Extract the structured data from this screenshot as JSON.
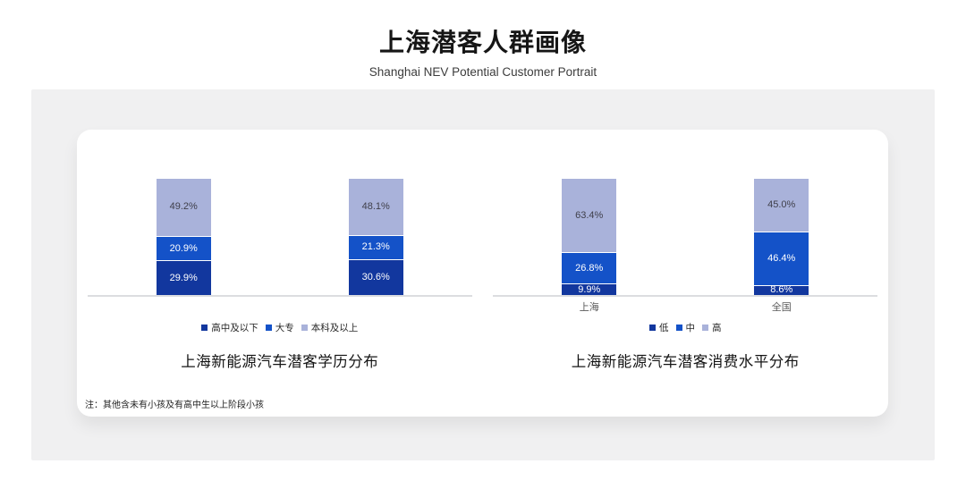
{
  "page": {
    "title": "上海潜客人群画像",
    "subtitle": "Shanghai NEV Potential Customer Portrait",
    "footnote": "注：其他含未有小孩及有高中生以上阶段小孩"
  },
  "colors": {
    "panel_bg": "#f0f0f1",
    "card_bg": "#ffffff",
    "axis_line": "#dcdde0",
    "segment_dark_blue": "#12379e",
    "segment_mid_blue": "#1452c8",
    "segment_light_lavender": "#a9b2da",
    "label_on_blue": "#ffffff",
    "label_on_lavender": "#3f3f4a",
    "category_label": "#595959"
  },
  "chart_data": [
    {
      "type": "bar",
      "stacked": true,
      "title": "上海新能源汽车潜客学历分布",
      "categories": [
        "",
        ""
      ],
      "series": [
        {
          "name": "高中及以下",
          "color": "#12379e",
          "label_color": "#ffffff",
          "values": [
            29.9,
            30.6
          ]
        },
        {
          "name": "大专",
          "color": "#1452c8",
          "label_color": "#ffffff",
          "values": [
            20.9,
            21.3
          ]
        },
        {
          "name": "本科及以上",
          "color": "#a9b2da",
          "label_color": "#3f3f4a",
          "values": [
            49.2,
            48.1
          ]
        }
      ],
      "ylim": [
        0,
        100
      ],
      "grid": false,
      "legend_position": "bottom",
      "value_suffix": "%"
    },
    {
      "type": "bar",
      "stacked": true,
      "title": "上海新能源汽车潜客消费水平分布",
      "categories": [
        "上海",
        "全国"
      ],
      "series": [
        {
          "name": "低",
          "color": "#12379e",
          "label_color": "#ffffff",
          "values": [
            9.9,
            8.6
          ]
        },
        {
          "name": "中",
          "color": "#1452c8",
          "label_color": "#ffffff",
          "values": [
            26.8,
            46.4
          ]
        },
        {
          "name": "高",
          "color": "#a9b2da",
          "label_color": "#3f3f4a",
          "values": [
            63.4,
            45.0
          ]
        }
      ],
      "ylim": [
        0,
        100
      ],
      "grid": false,
      "legend_position": "bottom",
      "value_suffix": "%"
    }
  ]
}
